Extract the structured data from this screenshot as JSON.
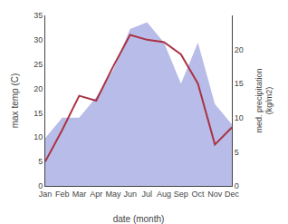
{
  "chart_data": {
    "type": "line",
    "xlabel": "date (month)",
    "ylabel": "max temp (C)",
    "y2label": "med. precipitation\n(kg/m2)",
    "categories": [
      "Jan",
      "Feb",
      "Mar",
      "Apr",
      "May",
      "Jun",
      "Jul",
      "Aug",
      "Sep",
      "Oct",
      "Nov",
      "Dec"
    ],
    "series": [
      {
        "type": "area",
        "axis": "y2",
        "color": "#b8bce8",
        "values": [
          7.0,
          10.0,
          10.0,
          13.0,
          17.0,
          23.0,
          24.0,
          21.0,
          15.0,
          21.0,
          12.0,
          9.0
        ]
      },
      {
        "type": "line",
        "color": "#aa3344",
        "values": [
          5.0,
          11.5,
          18.5,
          17.5,
          24.5,
          31.0,
          30.0,
          29.5,
          27.0,
          21.0,
          8.5,
          12.0
        ]
      }
    ],
    "ylim": [
      0,
      35
    ],
    "yticks": [
      0,
      5,
      10,
      15,
      20,
      25,
      30,
      35
    ],
    "y2lim": [
      0,
      25
    ],
    "y2ticks": [
      0,
      5,
      10,
      15,
      20
    ],
    "grid": false
  }
}
